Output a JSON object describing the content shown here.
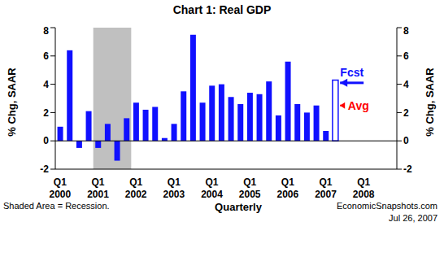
{
  "chart_data": {
    "type": "bar",
    "title": "Chart 1: Real GDP",
    "x_label": "Quarterly",
    "y_label": "% Chg, SAAR",
    "y2_label": "% Chg, SAAR",
    "categories": [
      "Q1 2000",
      null,
      null,
      null,
      "Q1 2001",
      null,
      null,
      null,
      "Q1 2002",
      null,
      null,
      null,
      "Q1 2003",
      null,
      null,
      null,
      "Q1 2004",
      null,
      null,
      null,
      "Q1 2005",
      null,
      null,
      null,
      "Q1 2006",
      null,
      null,
      null,
      "Q1 2007",
      null,
      null,
      null,
      "Q1 2008",
      null,
      null,
      null
    ],
    "series": [
      {
        "color": "#1010ff",
        "values": [
          1.0,
          6.4,
          -0.5,
          2.1,
          -0.5,
          1.2,
          -1.4,
          1.6,
          2.7,
          2.2,
          2.4,
          0.2,
          1.2,
          3.5,
          7.5,
          2.7,
          3.9,
          4.0,
          3.1,
          2.6,
          3.4,
          3.3,
          4.2,
          1.8,
          5.6,
          2.6,
          2.0,
          2.5,
          0.7,
          null,
          null,
          null,
          null,
          null,
          null,
          null
        ]
      },
      {
        "name": "Fcst",
        "color": "#1010ff",
        "marker": "hollow",
        "values": [
          null,
          null,
          null,
          null,
          null,
          null,
          null,
          null,
          null,
          null,
          null,
          null,
          null,
          null,
          null,
          null,
          null,
          null,
          null,
          null,
          null,
          null,
          null,
          null,
          null,
          null,
          null,
          null,
          null,
          4.3,
          null,
          null,
          null,
          null,
          null,
          null
        ]
      }
    ],
    "ylim": [
      -2,
      8
    ],
    "yticks": [
      -2,
      0,
      2,
      4,
      6,
      8
    ],
    "y2lim": [
      -2,
      8
    ],
    "y2ticks": [
      -2,
      0,
      2,
      4,
      6,
      8
    ],
    "annotations": [
      {
        "text": "Fcst",
        "value": 4.1,
        "color": "#1010ff"
      },
      {
        "text": "Avg",
        "value": 2.5,
        "color": "#ff0000"
      }
    ],
    "recession": {
      "start": 4,
      "end": 7,
      "color": "#c0c0c0"
    },
    "note": "Shaded Area = Recession.",
    "source": "EconomicSnapshots.com",
    "date": "Jul 26, 2007"
  }
}
